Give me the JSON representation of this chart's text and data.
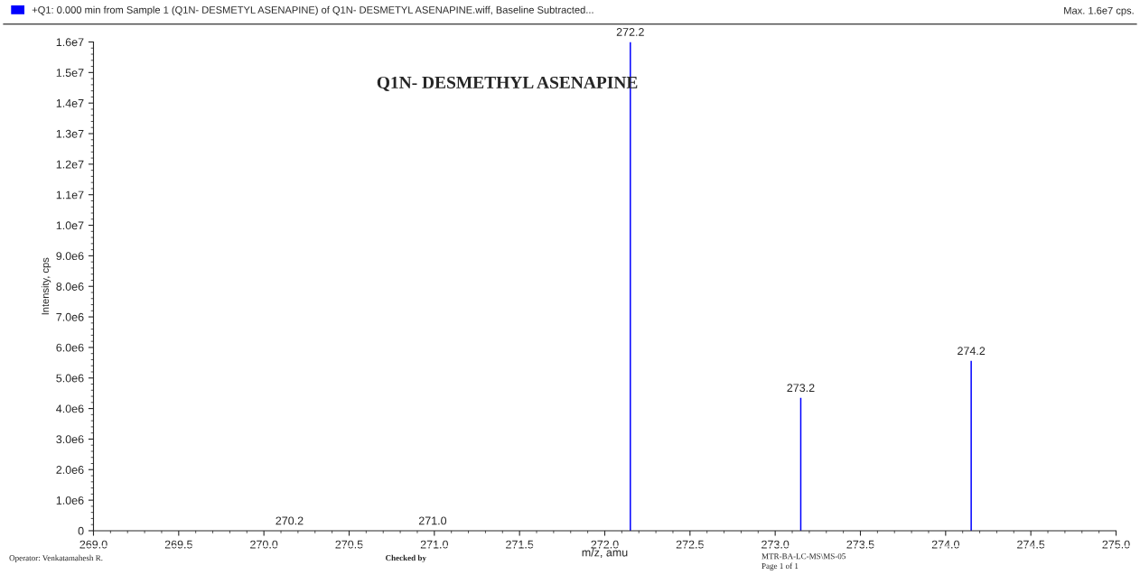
{
  "chart_data": {
    "type": "bar",
    "xlabel": "m/z, amu",
    "ylabel": "Intensity, cps",
    "series": [
      {
        "name": "+Q1: 0.000 min from Sample 1 (Q1N- DESMETYL ASENAPINE) of Q1N- DESMETYL ASENAPINE.wiff, Baseline Subtracted...",
        "color": "#0000ff",
        "x": [
          270.15,
          270.99,
          272.15,
          273.15,
          274.15
        ],
        "values": [
          0,
          0,
          16000000,
          4350000,
          5560000
        ]
      }
    ],
    "xlim": [
      269.0,
      275.0
    ],
    "xticks": [
      {
        "value": 269.0,
        "label": "269.0"
      },
      {
        "value": 269.5,
        "label": "269.5"
      },
      {
        "value": 270.0,
        "label": "270.0"
      },
      {
        "value": 270.5,
        "label": "270.5"
      },
      {
        "value": 271.0,
        "label": "271.0"
      },
      {
        "value": 271.5,
        "label": "271.5"
      },
      {
        "value": 272.0,
        "label": "272.0"
      },
      {
        "value": 272.5,
        "label": "272.5"
      },
      {
        "value": 273.0,
        "label": "273.0"
      },
      {
        "value": 273.5,
        "label": "273.5"
      },
      {
        "value": 274.0,
        "label": "274.0"
      },
      {
        "value": 274.5,
        "label": "274.5"
      },
      {
        "value": 275.0,
        "label": "275.0"
      }
    ],
    "ylim": [
      0,
      16000000
    ],
    "yticks": [
      0,
      {
        "value": 1000000,
        "label": "1.0e6"
      },
      {
        "value": 2000000,
        "label": "2.0e6"
      },
      {
        "value": 3000000,
        "label": "3.0e6"
      },
      {
        "value": 4000000,
        "label": "4.0e6"
      },
      {
        "value": 5000000,
        "label": "5.0e6"
      },
      {
        "value": 6000000,
        "label": "6.0e6"
      },
      {
        "value": 7000000,
        "label": "7.0e6"
      },
      {
        "value": 8000000,
        "label": "8.0e6"
      },
      {
        "value": 9000000,
        "label": "9.0e6"
      },
      {
        "value": 10000000,
        "label": "1.0e7"
      },
      {
        "value": 11000000,
        "label": "1.1e7"
      },
      {
        "value": 12000000,
        "label": "1.2e7"
      },
      {
        "value": 13000000,
        "label": "1.3e7"
      },
      {
        "value": 14000000,
        "label": "1.4e7"
      },
      {
        "value": 15000000,
        "label": "1.5e7"
      },
      {
        "value": 16000000,
        "label": "1.6e7"
      }
    ],
    "grid": false,
    "legend": "top left",
    "annotations": [
      {
        "text": "270.2",
        "x": 270.15,
        "y": 0
      },
      {
        "text": "271.0",
        "x": 270.99,
        "y": 0
      },
      {
        "text": "272.2",
        "x": 272.15,
        "y": 16000000
      },
      {
        "text": "273.2",
        "x": 273.15,
        "y": 4350000
      },
      {
        "text": "274.2",
        "x": 274.15,
        "y": 5560000
      },
      "Q1N- DESMETHYL ASENAPINE",
      "Max. 1.6e7 cps.",
      "Operator: Venkatamahesh R.",
      "Checked by",
      "MTR-BA-LC-MS\\MS-05",
      "Page 1 of 1"
    ]
  }
}
